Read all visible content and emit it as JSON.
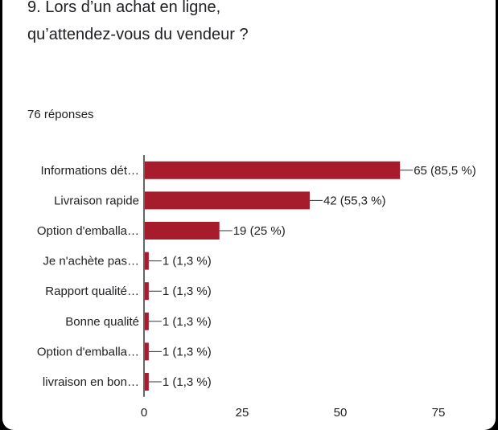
{
  "question": {
    "title": "9. Lors d’un achat en ligne, qu’attendez-vous du vendeur ?",
    "responses_label": "76 réponses"
  },
  "colors": {
    "bar": "#a61c2d",
    "axis": "#333333",
    "text": "#202124"
  },
  "chart_data": {
    "type": "bar",
    "orientation": "horizontal",
    "title": "9. Lors d’un achat en ligne, qu’attendez-vous du vendeur ?",
    "categories": [
      "Informations dét…",
      "Livraison rapide",
      "Option d'emballa…",
      "Je n'achète pas…",
      "Rapport qualité…",
      "Bonne qualité",
      "Option d'emballa…",
      "livraison en bon…"
    ],
    "values": [
      65,
      42,
      19,
      1,
      1,
      1,
      1,
      1
    ],
    "data_labels": [
      "65 (85,5 %)",
      "42 (55,3 %)",
      "19 (25 %)",
      "1 (1,3 %)",
      "1 (1,3 %)",
      "1 (1,3 %)",
      "1 (1,3 %)",
      "1 (1,3 %)"
    ],
    "xlim": [
      0,
      75
    ],
    "xticks": [
      0,
      25,
      50,
      75
    ],
    "xlabel": "",
    "ylabel": "",
    "grid": false,
    "legend": "none"
  }
}
